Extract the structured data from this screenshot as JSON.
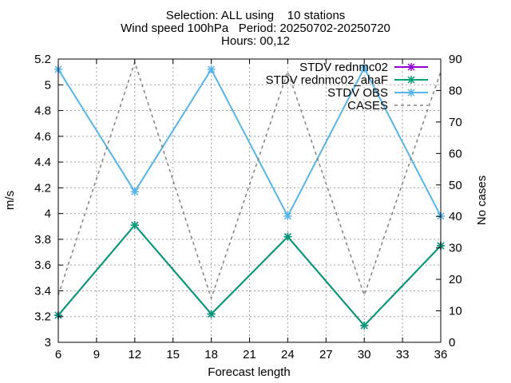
{
  "title_lines": [
    "Selection: ALL using    10 stations",
    "Wind speed 100hPa   Period: 20250702-20250720",
    "Hours: 00,12"
  ],
  "chart_data": {
    "type": "line",
    "xlabel": "Forecast length",
    "ylabel": "m/s",
    "y2label": "No cases",
    "x": [
      6,
      12,
      18,
      24,
      30,
      36
    ],
    "xlim": [
      6,
      36
    ],
    "xticks": [
      6,
      9,
      12,
      15,
      18,
      21,
      24,
      27,
      30,
      33,
      36
    ],
    "ylim": [
      3,
      5.2
    ],
    "yticks": [
      "3",
      "3.2",
      "3.4",
      "3.6",
      "3.8",
      "4",
      "4.2",
      "4.4",
      "4.6",
      "4.8",
      "5",
      "5.2"
    ],
    "y2lim": [
      0,
      90
    ],
    "y2ticks": [
      "0",
      "10",
      "20",
      "30",
      "40",
      "50",
      "60",
      "70",
      "80",
      "90"
    ],
    "grid": true,
    "legend_position": "top-right",
    "series": [
      {
        "name": "STDV rednmc02",
        "axis": "y",
        "color": "#9400d3",
        "dash": false,
        "marker": true,
        "values": [
          3.21,
          3.91,
          3.22,
          3.82,
          3.13,
          3.75
        ]
      },
      {
        "name": "STDV rednmc02_ahaF",
        "axis": "y",
        "color": "#009e73",
        "dash": false,
        "marker": true,
        "values": [
          3.21,
          3.91,
          3.22,
          3.82,
          3.13,
          3.75
        ]
      },
      {
        "name": "STDV OBS",
        "axis": "y",
        "color": "#56b4e9",
        "dash": false,
        "marker": true,
        "values": [
          5.12,
          4.17,
          5.12,
          3.98,
          5.13,
          3.98
        ]
      },
      {
        "name": "CASES",
        "axis": "y2",
        "color": "#808080",
        "dash": true,
        "marker": false,
        "values": [
          15,
          89,
          14,
          86,
          15,
          86
        ]
      }
    ]
  }
}
